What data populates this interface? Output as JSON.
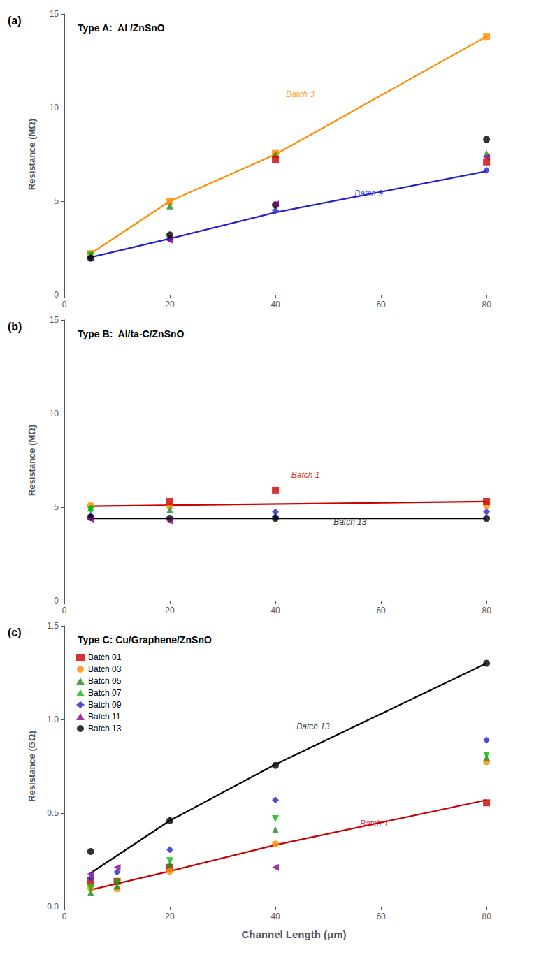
{
  "chart_data": [
    {
      "type": "scatter",
      "title": "Type A:  Al /ZnSnO",
      "subtitle": "(a)",
      "ylabel": "Resistance (MΩ)",
      "xlim": [
        0,
        87
      ],
      "xticks": [
        0,
        20,
        40,
        60,
        80
      ],
      "ylim": [
        0,
        15
      ],
      "yticks": [
        0,
        5,
        10,
        15
      ],
      "grid": false,
      "series": [
        {
          "type": "line",
          "color": "#FF8C00",
          "x": [
            5,
            20,
            40,
            80
          ],
          "values": [
            2.2,
            5.0,
            7.5,
            13.8
          ]
        },
        {
          "type": "line",
          "color": "#2222CC",
          "x": [
            5,
            20,
            40,
            80
          ],
          "values": [
            2.0,
            3.0,
            4.4,
            6.6
          ]
        },
        {
          "type": "scatter",
          "color": "#FF8C00",
          "marker": "square",
          "x": [
            5,
            20,
            40,
            80
          ],
          "values": [
            2.2,
            5.0,
            7.55,
            13.8
          ]
        },
        {
          "type": "scatter",
          "color": "#228B22",
          "marker": "triangle-up",
          "x": [
            5,
            20,
            40,
            80
          ],
          "values": [
            2.15,
            4.75,
            7.5,
            7.55
          ]
        },
        {
          "type": "scatter",
          "color": "#00BB00",
          "marker": "triangle-down",
          "x": [
            5
          ],
          "values": [
            2.1
          ]
        },
        {
          "type": "scatter",
          "color": "#2222CC",
          "marker": "diamond",
          "x": [
            5,
            20,
            40,
            80
          ],
          "values": [
            2.0,
            3.0,
            4.5,
            6.65
          ]
        },
        {
          "type": "scatter",
          "color": "#000000",
          "marker": "circle",
          "x": [
            5,
            20,
            40,
            80
          ],
          "values": [
            1.95,
            3.2,
            4.8,
            8.3
          ]
        },
        {
          "type": "scatter",
          "color": "#8B008B",
          "marker": "triangle-left",
          "x": [
            20,
            40,
            80
          ],
          "values": [
            2.9,
            4.85,
            7.35
          ]
        },
        {
          "type": "scatter",
          "color": "#CC0000",
          "marker": "square",
          "x": [
            40,
            80
          ],
          "values": [
            7.2,
            7.1
          ]
        }
      ],
      "annotations": [
        {
          "text": "Batch 3",
          "x": 42,
          "y": 10.5,
          "color": "#FF8C00"
        },
        {
          "text": "Batch 9",
          "x": 55,
          "y": 5.2,
          "color": "#2222CC"
        }
      ]
    },
    {
      "type": "scatter",
      "title": "Type B:  Al/ta-C/ZnSnO",
      "subtitle": "(b)",
      "ylabel": "Resistance (MΩ)",
      "xlim": [
        0,
        87
      ],
      "xticks": [
        0,
        20,
        40,
        60,
        80
      ],
      "ylim": [
        0,
        15
      ],
      "yticks": [
        0,
        5,
        10,
        15
      ],
      "grid": false,
      "series": [
        {
          "type": "line",
          "color": "#CC0000",
          "x": [
            5,
            80
          ],
          "values": [
            5.05,
            5.3
          ]
        },
        {
          "type": "line",
          "color": "#000000",
          "x": [
            5,
            80
          ],
          "values": [
            4.4,
            4.4
          ]
        },
        {
          "type": "scatter",
          "color": "#FF8C00",
          "marker": "circle",
          "x": [
            5,
            20,
            80
          ],
          "values": [
            5.1,
            5.05,
            5.1
          ]
        },
        {
          "type": "scatter",
          "color": "#228B22",
          "marker": "triangle-up",
          "x": [
            5,
            20
          ],
          "values": [
            4.95,
            4.85
          ]
        },
        {
          "type": "scatter",
          "color": "#00BB00",
          "marker": "triangle-down",
          "x": [
            5
          ],
          "values": [
            4.85
          ]
        },
        {
          "type": "scatter",
          "color": "#2222CC",
          "marker": "diamond",
          "x": [
            5,
            40,
            40,
            80
          ],
          "values": [
            4.55,
            4.75,
            4.5,
            4.75
          ]
        },
        {
          "type": "scatter",
          "color": "#000000",
          "marker": "circle",
          "x": [
            5,
            20,
            40,
            80
          ],
          "values": [
            4.45,
            4.4,
            4.4,
            4.4
          ]
        },
        {
          "type": "scatter",
          "color": "#8B008B",
          "marker": "triangle-left",
          "x": [
            5,
            20
          ],
          "values": [
            4.35,
            4.25
          ]
        },
        {
          "type": "scatter",
          "color": "#CC0000",
          "marker": "square",
          "x": [
            20,
            40,
            80
          ],
          "values": [
            5.3,
            5.9,
            5.3
          ]
        }
      ],
      "annotations": [
        {
          "text": "Batch 1",
          "x": 43,
          "y": 6.5,
          "color": "#CC0000"
        },
        {
          "text": "Batch 13",
          "x": 51,
          "y": 4.0,
          "color": "#000000"
        }
      ]
    },
    {
      "type": "scatter",
      "title": "Type C: Cu/Graphene/ZnSnO",
      "subtitle": "(c)",
      "xlabel": "Channel Length (μm)",
      "ylabel": "Resistance (GΩ)",
      "xlim": [
        0,
        87
      ],
      "xticks": [
        0,
        20,
        40,
        60,
        80
      ],
      "ylim": [
        0,
        1.5
      ],
      "yticks": [
        {
          "value": 0,
          "label": "0.0"
        },
        0.5,
        {
          "value": 1,
          "label": "1.0"
        },
        1.5
      ],
      "grid": false,
      "legend": "upper left",
      "series": [
        {
          "type": "line",
          "color": "#CC0000",
          "x": [
            5,
            20,
            40,
            80
          ],
          "values": [
            0.09,
            0.19,
            0.33,
            0.57
          ]
        },
        {
          "type": "line",
          "color": "#000000",
          "x": [
            5,
            20,
            40,
            80
          ],
          "values": [
            0.18,
            0.46,
            0.76,
            1.3
          ]
        },
        {
          "type": "scatter",
          "name": "Batch 01",
          "color": "#CC0000",
          "marker": "square",
          "x": [
            5,
            10,
            20,
            80
          ],
          "values": [
            0.135,
            0.135,
            0.21,
            0.555
          ]
        },
        {
          "type": "scatter",
          "name": "Batch 03",
          "color": "#FF8C00",
          "marker": "circle",
          "x": [
            5,
            10,
            20,
            40,
            80
          ],
          "values": [
            0.1,
            0.095,
            0.19,
            0.335,
            0.775
          ]
        },
        {
          "type": "scatter",
          "name": "Batch 05",
          "color": "#228B22",
          "marker": "triangle-up",
          "x": [
            5,
            10,
            20,
            40,
            80
          ],
          "values": [
            0.075,
            0.11,
            0.225,
            0.41,
            0.795
          ]
        },
        {
          "type": "scatter",
          "name": "Batch 07",
          "color": "#00BB00",
          "marker": "triangle-down",
          "x": [
            5,
            10,
            20,
            40,
            80
          ],
          "values": [
            0.1,
            0.13,
            0.245,
            0.47,
            0.81
          ]
        },
        {
          "type": "scatter",
          "name": "Batch 09",
          "color": "#2222CC",
          "marker": "diamond",
          "x": [
            5,
            10,
            20,
            40,
            80
          ],
          "values": [
            0.155,
            0.185,
            0.305,
            0.57,
            0.89
          ]
        },
        {
          "type": "scatter",
          "name": "Batch 11",
          "color": "#8B008B",
          "marker": "triangle-left",
          "x": [
            5,
            10,
            40
          ],
          "values": [
            0.175,
            0.21,
            0.21
          ]
        },
        {
          "type": "scatter",
          "name": "Batch 13",
          "color": "#000000",
          "marker": "circle",
          "x": [
            5,
            20,
            40,
            80
          ],
          "values": [
            0.295,
            0.46,
            0.755,
            1.3
          ]
        }
      ],
      "annotations": [
        {
          "text": "Batch 13",
          "x": 44,
          "y": 0.94,
          "color": "#000000"
        },
        {
          "text": "Batch 1",
          "x": 56,
          "y": 0.42,
          "color": "#CC0000"
        }
      ]
    }
  ]
}
